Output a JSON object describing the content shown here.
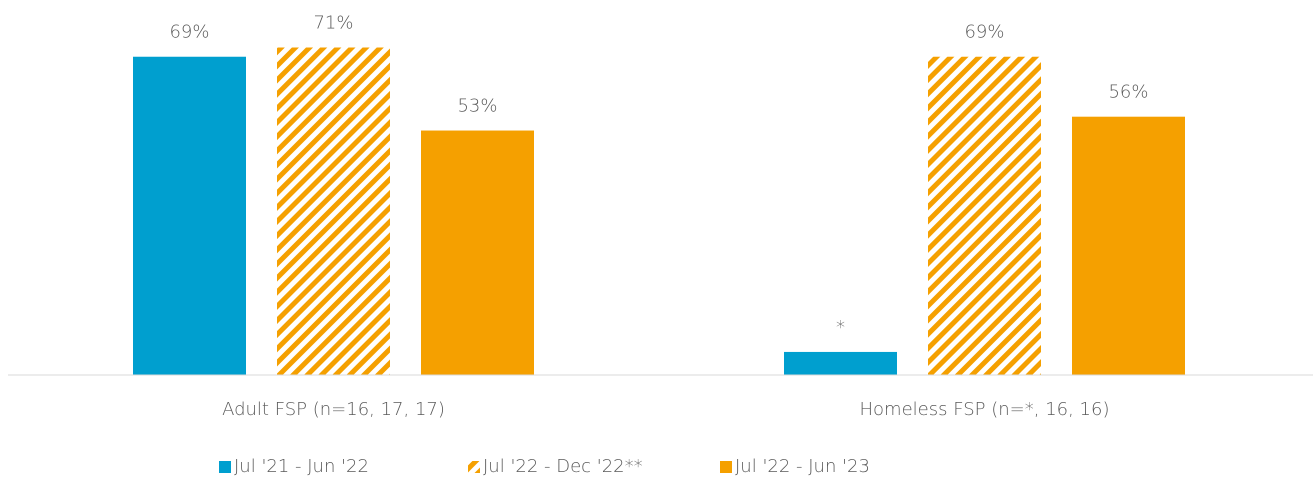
{
  "chart_data": {
    "type": "bar",
    "categories": [
      "Adult FSP  (n=16, 17, 17)",
      "Homeless FSP (n=*, 16, 16)"
    ],
    "series": [
      {
        "name": "Jul '21 - Jun '22",
        "color": "#009fcf",
        "pattern": "solid",
        "values": [
          69,
          5
        ],
        "value_labels": [
          "69%",
          "*"
        ]
      },
      {
        "name": "Jul '22 - Dec '22**",
        "color": "#f5a000",
        "pattern": "hatch",
        "values": [
          71,
          69
        ],
        "value_labels": [
          "71%",
          "69%"
        ]
      },
      {
        "name": "Jul '22 - Jun '23",
        "color": "#f5a000",
        "pattern": "solid",
        "values": [
          53,
          56
        ],
        "value_labels": [
          "53%",
          "56%"
        ]
      }
    ],
    "ylim": [
      0,
      80
    ],
    "legend": "bottom"
  }
}
